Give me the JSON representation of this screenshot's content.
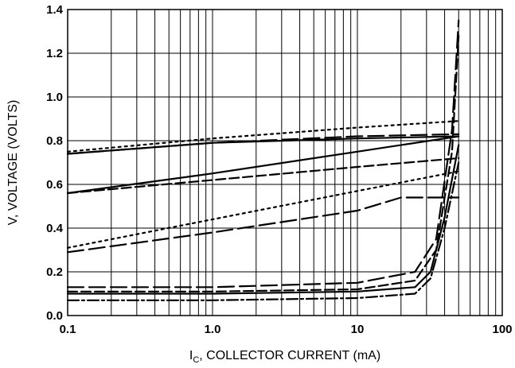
{
  "chart_data": {
    "type": "line",
    "xscale": "log",
    "xlim": [
      0.1,
      100
    ],
    "ylim": [
      0,
      1.4
    ],
    "grid": true,
    "xlabel_main": "I",
    "xlabel_sub": "C",
    "xlabel_rest": ", COLLECTOR CURRENT (mA)",
    "ylabel": "V, VOLTAGE (VOLTS)",
    "xticks": [
      {
        "value": 0.1,
        "label": "0.1"
      },
      {
        "value": 1,
        "label": "1.0"
      },
      {
        "value": 10,
        "label": "10"
      },
      {
        "value": 100,
        "label": "100"
      }
    ],
    "yticks": [
      {
        "value": 0,
        "label": "0.0"
      },
      {
        "value": 0.2,
        "label": "0.2"
      },
      {
        "value": 0.4,
        "label": "0.4"
      },
      {
        "value": 0.6,
        "label": "0.6"
      },
      {
        "value": 0.8,
        "label": "0.8"
      },
      {
        "value": 1.0,
        "label": "1.0"
      },
      {
        "value": 1.2,
        "label": "1.2"
      },
      {
        "value": 1.4,
        "label": "1.4"
      }
    ],
    "series": [
      {
        "style": "solid",
        "x": [
          0.1,
          1,
          10,
          50
        ],
        "y": [
          0.74,
          0.79,
          0.81,
          0.82
        ]
      },
      {
        "style": "dotted",
        "x": [
          0.1,
          1,
          10,
          50
        ],
        "y": [
          0.75,
          0.81,
          0.86,
          0.89
        ]
      },
      {
        "style": "longdash",
        "x": [
          0.1,
          1,
          10,
          50
        ],
        "y": [
          0.74,
          0.79,
          0.82,
          0.83
        ]
      },
      {
        "style": "solid",
        "x": [
          0.1,
          1,
          10,
          50
        ],
        "y": [
          0.56,
          0.65,
          0.75,
          0.82
        ]
      },
      {
        "style": "dash",
        "x": [
          0.1,
          1,
          10,
          50
        ],
        "y": [
          0.56,
          0.62,
          0.68,
          0.72
        ]
      },
      {
        "style": "dotted",
        "x": [
          0.1,
          1,
          10,
          50
        ],
        "y": [
          0.31,
          0.44,
          0.57,
          0.66
        ]
      },
      {
        "style": "longdash",
        "x": [
          0.1,
          1,
          10,
          20,
          50
        ],
        "y": [
          0.29,
          0.38,
          0.48,
          0.54,
          0.54
        ]
      },
      {
        "style": "longdash",
        "x": [
          0.1,
          1,
          10,
          25,
          35,
          45,
          50
        ],
        "y": [
          0.13,
          0.13,
          0.15,
          0.2,
          0.35,
          0.85,
          1.35
        ]
      },
      {
        "style": "dash",
        "x": [
          0.1,
          1,
          10,
          25,
          35,
          45,
          50
        ],
        "y": [
          0.11,
          0.11,
          0.12,
          0.16,
          0.3,
          0.75,
          1.28
        ]
      },
      {
        "style": "solid",
        "x": [
          0.1,
          1,
          10,
          25,
          32,
          40,
          50
        ],
        "y": [
          0.1,
          0.1,
          0.11,
          0.13,
          0.2,
          0.45,
          0.78
        ]
      },
      {
        "style": "dashdot",
        "x": [
          0.1,
          1,
          10,
          25,
          32,
          40,
          50
        ],
        "y": [
          0.07,
          0.07,
          0.08,
          0.1,
          0.17,
          0.4,
          0.7
        ]
      }
    ]
  }
}
